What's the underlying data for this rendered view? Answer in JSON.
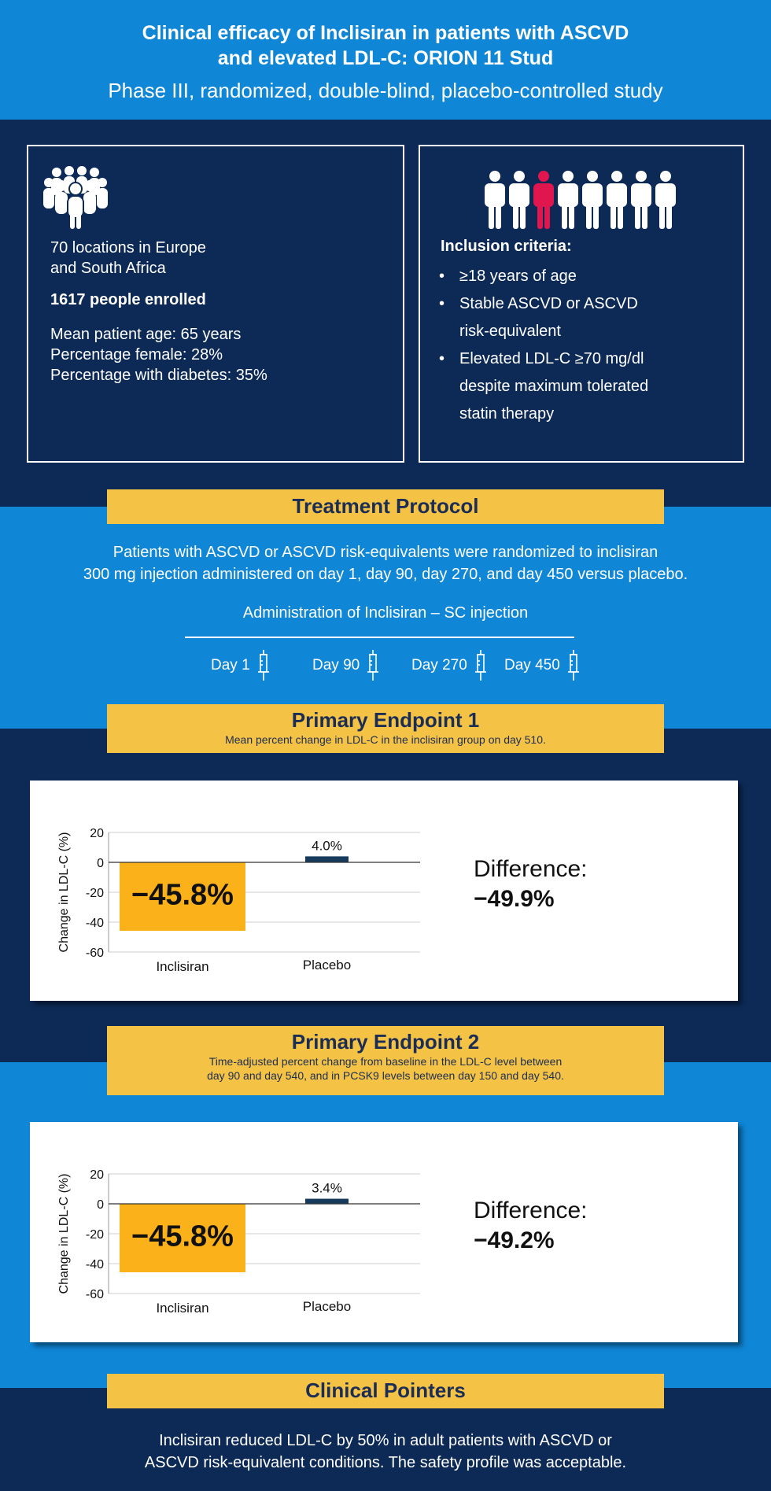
{
  "header": {
    "title_line1": "Clinical efficacy of Inclisiran in patients with ASCVD",
    "title_line2": "and elevated LDL-C: ORION 11 Stud",
    "subtitle": "Phase III, randomized, double-blind, placebo-controlled study"
  },
  "study": {
    "locations_line1": "70 locations in Europe",
    "locations_line2": "and South Africa",
    "enrolled": "1617 people enrolled",
    "age": "Mean patient age: 65 years",
    "female": "Percentage female: 28%",
    "diabetes": "Percentage with diabetes: 35%"
  },
  "inclusion": {
    "title": "Inclusion criteria:",
    "items": [
      {
        "line1": "≥18 years of age",
        "line2": "",
        "line3": ""
      },
      {
        "line1": "Stable ASCVD or ASCVD",
        "line2": "risk-equivalent",
        "line3": ""
      },
      {
        "line1": "Elevated LDL-C ≥70 mg/dl",
        "line2": "despite maximum tolerated",
        "line3": "statin therapy"
      }
    ]
  },
  "protocol": {
    "title": "Treatment Protocol",
    "text_line1": "Patients with ASCVD or ASCVD risk-equivalents were randomized to inclisiran",
    "text_line2": "300 mg injection administered on day 1, day 90, day 270, and day 450 versus placebo.",
    "admin_label": "Administration of Inclisiran – SC injection",
    "days": [
      "Day 1",
      "Day 90",
      "Day 270",
      "Day 450"
    ]
  },
  "endpoint1": {
    "title": "Primary Endpoint 1",
    "subtitle": "Mean percent change in LDL-C in the inclisiran group on day 510.",
    "difference_label": "Difference:",
    "difference_value": "−49.9%"
  },
  "endpoint2": {
    "title": "Primary Endpoint 2",
    "subtitle_line1": "Time-adjusted percent change from baseline in the LDL-C level between",
    "subtitle_line2": "day 90 and day 540, and in PCSK9 levels between day 150 and day 540.",
    "difference_label": "Difference:",
    "difference_value": "−49.2%"
  },
  "pointers": {
    "title": "Clinical Pointers",
    "text_line1": "Inclisiran reduced LDL-C by 50% in adult patients with ASCVD or",
    "text_line2": "ASCVD risk-equivalent conditions. The safety profile was acceptable."
  },
  "colors": {
    "inclisiran": "#fbb119",
    "placebo": "#163a5c",
    "highlight_person": "#e0164f"
  },
  "chart_data": [
    {
      "type": "bar",
      "categories": [
        "Inclisiran",
        "Placebo"
      ],
      "values": [
        -45.8,
        4.0
      ],
      "data_labels": [
        "−45.8%",
        "4.0%"
      ],
      "ylabel": "Change in LDL-C (%)",
      "ylim": [
        -60,
        20
      ],
      "yticks": [
        20,
        0,
        -20,
        -40,
        -60
      ],
      "ytick_labels": [
        "20",
        "0",
        "-20",
        "-40",
        "-60"
      ],
      "grid": true
    },
    {
      "type": "bar",
      "categories": [
        "Inclisiran",
        "Placebo"
      ],
      "values": [
        -45.8,
        3.4
      ],
      "data_labels": [
        "−45.8%",
        "3.4%"
      ],
      "ylabel": "Change in LDL-C (%)",
      "ylim": [
        -60,
        20
      ],
      "yticks": [
        20,
        0,
        -20,
        -40,
        -60
      ],
      "ytick_labels": [
        "20",
        "0",
        "-20",
        "-40",
        "-60"
      ],
      "grid": true
    }
  ]
}
